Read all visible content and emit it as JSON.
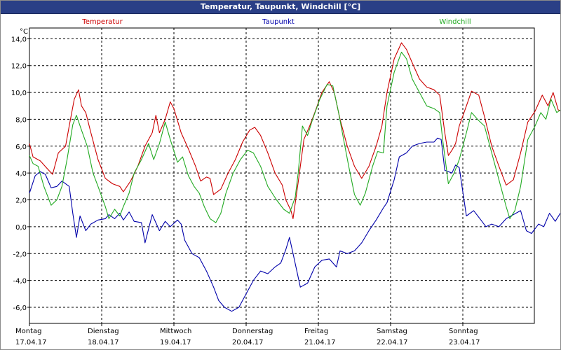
{
  "window": {
    "title": "Temperatur, Taupunkt, Windchill [°C]"
  },
  "chart_data": {
    "type": "line",
    "title": "Temperatur, Taupunkt, Windchill [°C]",
    "ylabel": "°C",
    "ylim": [
      -7.2,
      14.8
    ],
    "yticks": [
      14.0,
      12.0,
      10.0,
      8.0,
      6.0,
      4.0,
      2.0,
      0.0,
      -2.0,
      -4.0,
      -6.0
    ],
    "ytick_labels": [
      "14,0",
      "12,0",
      "10,0",
      "8,0",
      "6,0",
      "4,0",
      "2,0",
      "0,0",
      "-2,0",
      "-4,0",
      "-6,0"
    ],
    "xlim": [
      0,
      7
    ],
    "xticks": [
      {
        "day": "Montag",
        "date": "17.04.17",
        "x": 0
      },
      {
        "day": "Dienstag",
        "date": "18.04.17",
        "x": 1
      },
      {
        "day": "Mittwoch",
        "date": "19.04.17",
        "x": 2
      },
      {
        "day": "Donnerstag",
        "date": "20.04.17",
        "x": 3
      },
      {
        "day": "Freitag",
        "date": "21.04.17",
        "x": 4
      },
      {
        "day": "Samstag",
        "date": "22.04.17",
        "x": 5
      },
      {
        "day": "Sonntag",
        "date": "23.04.17",
        "x": 6
      }
    ],
    "grid": true,
    "legend_position": "top",
    "series": [
      {
        "name": "Temperatur",
        "color": "#cc0000",
        "points": [
          [
            0,
            6.2
          ],
          [
            0.05,
            5.2
          ],
          [
            0.15,
            4.9
          ],
          [
            0.25,
            4.3
          ],
          [
            0.32,
            3.9
          ],
          [
            0.4,
            5.5
          ],
          [
            0.5,
            6.0
          ],
          [
            0.55,
            7.5
          ],
          [
            0.62,
            9.5
          ],
          [
            0.68,
            10.2
          ],
          [
            0.72,
            9.0
          ],
          [
            0.78,
            8.5
          ],
          [
            0.85,
            7.0
          ],
          [
            0.95,
            5.0
          ],
          [
            1.05,
            3.6
          ],
          [
            1.15,
            3.2
          ],
          [
            1.25,
            3.0
          ],
          [
            1.3,
            2.6
          ],
          [
            1.4,
            3.4
          ],
          [
            1.5,
            4.5
          ],
          [
            1.6,
            6.0
          ],
          [
            1.7,
            7.0
          ],
          [
            1.75,
            8.3
          ],
          [
            1.8,
            7.0
          ],
          [
            1.88,
            8.0
          ],
          [
            1.95,
            9.3
          ],
          [
            2.0,
            8.8
          ],
          [
            2.1,
            7.0
          ],
          [
            2.2,
            5.8
          ],
          [
            2.3,
            4.5
          ],
          [
            2.37,
            3.4
          ],
          [
            2.45,
            3.7
          ],
          [
            2.5,
            3.6
          ],
          [
            2.55,
            2.4
          ],
          [
            2.65,
            2.8
          ],
          [
            2.75,
            4.0
          ],
          [
            2.85,
            5.0
          ],
          [
            2.95,
            6.3
          ],
          [
            3.05,
            7.2
          ],
          [
            3.12,
            7.4
          ],
          [
            3.2,
            6.8
          ],
          [
            3.3,
            5.5
          ],
          [
            3.4,
            4.0
          ],
          [
            3.5,
            3.1
          ],
          [
            3.55,
            2.0
          ],
          [
            3.62,
            1.2
          ],
          [
            3.65,
            0.6
          ],
          [
            3.72,
            3.3
          ],
          [
            3.8,
            6.5
          ],
          [
            3.88,
            7.5
          ],
          [
            3.95,
            8.5
          ],
          [
            4.05,
            10.0
          ],
          [
            4.15,
            10.8
          ],
          [
            4.22,
            10.0
          ],
          [
            4.3,
            8.0
          ],
          [
            4.4,
            6.0
          ],
          [
            4.5,
            4.5
          ],
          [
            4.6,
            3.6
          ],
          [
            4.7,
            4.5
          ],
          [
            4.8,
            6.0
          ],
          [
            4.88,
            7.5
          ],
          [
            4.95,
            10.0
          ],
          [
            5.05,
            12.5
          ],
          [
            5.15,
            13.7
          ],
          [
            5.22,
            13.2
          ],
          [
            5.3,
            12.2
          ],
          [
            5.4,
            11.0
          ],
          [
            5.5,
            10.4
          ],
          [
            5.6,
            10.2
          ],
          [
            5.68,
            9.8
          ],
          [
            5.75,
            7.0
          ],
          [
            5.8,
            5.3
          ],
          [
            5.85,
            5.7
          ],
          [
            5.9,
            6.2
          ],
          [
            5.95,
            7.5
          ],
          [
            6.05,
            9.0
          ],
          [
            6.12,
            10.1
          ],
          [
            6.22,
            9.8
          ],
          [
            6.3,
            8.2
          ],
          [
            6.4,
            6.0
          ],
          [
            6.5,
            4.5
          ],
          [
            6.6,
            3.1
          ],
          [
            6.7,
            3.5
          ],
          [
            6.8,
            5.5
          ],
          [
            6.9,
            7.8
          ],
          [
            7.0,
            8.6
          ],
          [
            7.1,
            9.8
          ],
          [
            7.18,
            9.0
          ],
          [
            7.25,
            10.0
          ],
          [
            7.32,
            8.7
          ],
          [
            7.42,
            8.5
          ],
          [
            7.48,
            8.0
          ],
          [
            7.52,
            7.6
          ]
        ]
      },
      {
        "name": "Taupunkt",
        "color": "#0000aa",
        "points": [
          [
            0,
            2.5
          ],
          [
            0.08,
            3.8
          ],
          [
            0.15,
            4.1
          ],
          [
            0.22,
            3.9
          ],
          [
            0.3,
            2.9
          ],
          [
            0.38,
            3.0
          ],
          [
            0.45,
            3.4
          ],
          [
            0.55,
            3.0
          ],
          [
            0.6,
            1.0
          ],
          [
            0.65,
            -0.8
          ],
          [
            0.7,
            0.8
          ],
          [
            0.78,
            -0.3
          ],
          [
            0.85,
            0.2
          ],
          [
            0.95,
            0.5
          ],
          [
            1.05,
            0.6
          ],
          [
            1.1,
            0.9
          ],
          [
            1.18,
            0.6
          ],
          [
            1.25,
            1.0
          ],
          [
            1.3,
            0.5
          ],
          [
            1.38,
            1.1
          ],
          [
            1.45,
            0.4
          ],
          [
            1.55,
            0.3
          ],
          [
            1.6,
            -1.2
          ],
          [
            1.7,
            0.9
          ],
          [
            1.8,
            -0.3
          ],
          [
            1.88,
            0.4
          ],
          [
            1.95,
            0.0
          ],
          [
            2.05,
            0.5
          ],
          [
            2.1,
            0.2
          ],
          [
            2.15,
            -1.0
          ],
          [
            2.25,
            -2.0
          ],
          [
            2.35,
            -2.3
          ],
          [
            2.45,
            -3.3
          ],
          [
            2.55,
            -4.5
          ],
          [
            2.62,
            -5.5
          ],
          [
            2.7,
            -6.0
          ],
          [
            2.8,
            -6.3
          ],
          [
            2.9,
            -6.0
          ],
          [
            3.0,
            -5.0
          ],
          [
            3.1,
            -4.0
          ],
          [
            3.2,
            -3.3
          ],
          [
            3.3,
            -3.5
          ],
          [
            3.4,
            -3.0
          ],
          [
            3.48,
            -2.7
          ],
          [
            3.55,
            -1.7
          ],
          [
            3.6,
            -0.8
          ],
          [
            3.65,
            -2.0
          ],
          [
            3.75,
            -4.5
          ],
          [
            3.85,
            -4.2
          ],
          [
            3.95,
            -3.0
          ],
          [
            4.05,
            -2.5
          ],
          [
            4.15,
            -2.4
          ],
          [
            4.25,
            -3.0
          ],
          [
            4.3,
            -1.8
          ],
          [
            4.4,
            -2.0
          ],
          [
            4.5,
            -1.8
          ],
          [
            4.6,
            -1.2
          ],
          [
            4.7,
            -0.3
          ],
          [
            4.8,
            0.5
          ],
          [
            4.9,
            1.4
          ],
          [
            4.95,
            1.8
          ],
          [
            5.05,
            3.5
          ],
          [
            5.12,
            5.2
          ],
          [
            5.22,
            5.5
          ],
          [
            5.3,
            6.0
          ],
          [
            5.4,
            6.2
          ],
          [
            5.5,
            6.3
          ],
          [
            5.6,
            6.3
          ],
          [
            5.65,
            6.6
          ],
          [
            5.7,
            6.5
          ],
          [
            5.75,
            4.2
          ],
          [
            5.85,
            4.0
          ],
          [
            5.9,
            4.6
          ],
          [
            5.95,
            4.4
          ],
          [
            6.05,
            0.8
          ],
          [
            6.15,
            1.2
          ],
          [
            6.25,
            0.5
          ],
          [
            6.32,
            0.0
          ],
          [
            6.4,
            0.2
          ],
          [
            6.5,
            0.0
          ],
          [
            6.6,
            0.6
          ],
          [
            6.7,
            0.9
          ],
          [
            6.8,
            1.2
          ],
          [
            6.88,
            -0.3
          ],
          [
            6.95,
            -0.5
          ],
          [
            7.05,
            0.2
          ],
          [
            7.12,
            0.0
          ],
          [
            7.2,
            1.0
          ],
          [
            7.28,
            0.4
          ],
          [
            7.35,
            1.0
          ],
          [
            7.45,
            1.8
          ],
          [
            7.52,
            1.6
          ]
        ]
      },
      {
        "name": "Windchill",
        "color": "#22aa22",
        "points": [
          [
            0,
            5.3
          ],
          [
            0.05,
            4.7
          ],
          [
            0.12,
            4.5
          ],
          [
            0.2,
            3.0
          ],
          [
            0.3,
            1.6
          ],
          [
            0.38,
            2.0
          ],
          [
            0.45,
            3.0
          ],
          [
            0.52,
            5.0
          ],
          [
            0.6,
            7.6
          ],
          [
            0.65,
            8.3
          ],
          [
            0.72,
            7.2
          ],
          [
            0.8,
            6.0
          ],
          [
            0.88,
            4.0
          ],
          [
            0.95,
            3.0
          ],
          [
            1.05,
            1.5
          ],
          [
            1.1,
            0.6
          ],
          [
            1.18,
            1.3
          ],
          [
            1.25,
            0.8
          ],
          [
            1.3,
            1.5
          ],
          [
            1.38,
            2.5
          ],
          [
            1.45,
            4.0
          ],
          [
            1.55,
            5.0
          ],
          [
            1.65,
            6.2
          ],
          [
            1.72,
            5.0
          ],
          [
            1.8,
            6.2
          ],
          [
            1.88,
            7.8
          ],
          [
            1.95,
            6.5
          ],
          [
            2.05,
            4.8
          ],
          [
            2.12,
            5.2
          ],
          [
            2.2,
            3.8
          ],
          [
            2.28,
            3.0
          ],
          [
            2.35,
            2.5
          ],
          [
            2.42,
            1.5
          ],
          [
            2.5,
            0.6
          ],
          [
            2.58,
            0.3
          ],
          [
            2.65,
            1.0
          ],
          [
            2.72,
            2.5
          ],
          [
            2.82,
            4.0
          ],
          [
            2.92,
            5.0
          ],
          [
            3.02,
            5.7
          ],
          [
            3.1,
            5.5
          ],
          [
            3.2,
            4.5
          ],
          [
            3.3,
            3.0
          ],
          [
            3.42,
            2.0
          ],
          [
            3.52,
            1.3
          ],
          [
            3.6,
            1.0
          ],
          [
            3.68,
            2.2
          ],
          [
            3.72,
            4.0
          ],
          [
            3.78,
            7.5
          ],
          [
            3.85,
            6.8
          ],
          [
            3.92,
            8.0
          ],
          [
            4.02,
            9.5
          ],
          [
            4.12,
            10.6
          ],
          [
            4.2,
            10.5
          ],
          [
            4.28,
            8.5
          ],
          [
            4.35,
            6.5
          ],
          [
            4.42,
            4.5
          ],
          [
            4.5,
            2.4
          ],
          [
            4.58,
            1.6
          ],
          [
            4.65,
            2.5
          ],
          [
            4.75,
            4.5
          ],
          [
            4.82,
            5.6
          ],
          [
            4.9,
            5.5
          ],
          [
            4.95,
            9.0
          ],
          [
            5.05,
            11.5
          ],
          [
            5.15,
            13.0
          ],
          [
            5.22,
            12.5
          ],
          [
            5.3,
            11.0
          ],
          [
            5.4,
            10.0
          ],
          [
            5.5,
            9.0
          ],
          [
            5.6,
            8.8
          ],
          [
            5.68,
            8.5
          ],
          [
            5.72,
            6.5
          ],
          [
            5.8,
            3.2
          ],
          [
            5.88,
            4.0
          ],
          [
            5.95,
            5.0
          ],
          [
            6.05,
            7.0
          ],
          [
            6.12,
            8.5
          ],
          [
            6.22,
            7.9
          ],
          [
            6.3,
            7.5
          ],
          [
            6.4,
            5.5
          ],
          [
            6.5,
            3.5
          ],
          [
            6.6,
            1.5
          ],
          [
            6.65,
            0.6
          ],
          [
            6.72,
            1.2
          ],
          [
            6.8,
            3.0
          ],
          [
            6.9,
            6.5
          ],
          [
            7.0,
            7.5
          ],
          [
            7.08,
            8.5
          ],
          [
            7.15,
            8.0
          ],
          [
            7.22,
            9.5
          ],
          [
            7.3,
            8.5
          ],
          [
            7.38,
            8.8
          ],
          [
            7.42,
            9.6
          ],
          [
            7.47,
            9.0
          ],
          [
            7.52,
            7.0
          ]
        ]
      }
    ]
  }
}
